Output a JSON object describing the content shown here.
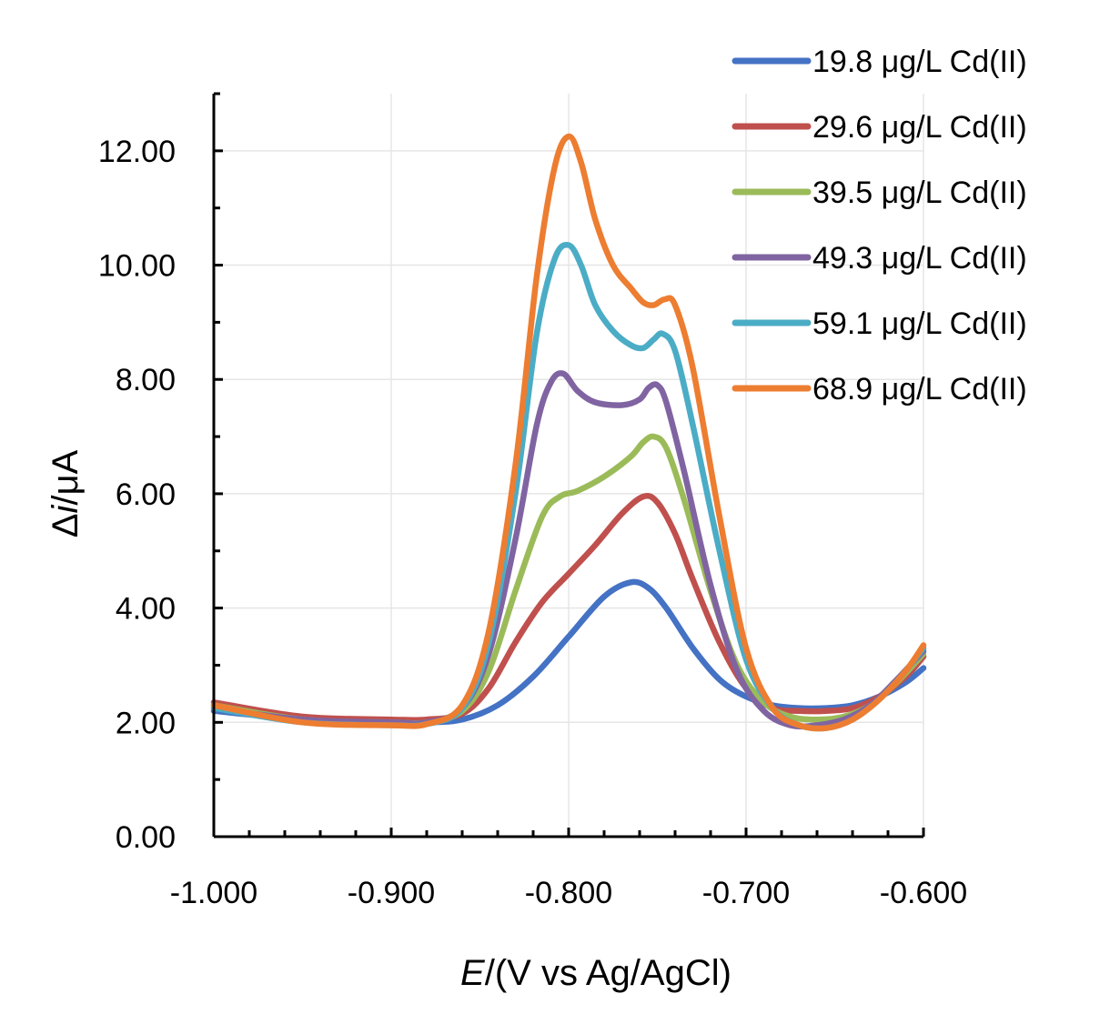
{
  "chart_data": {
    "type": "line",
    "xlabel_italic": "E",
    "xlabel_rest": "/(V vs Ag/AgCl)",
    "ylabel_prefix": "Δ",
    "ylabel_italic": "i",
    "ylabel_rest": "/μA",
    "xlim": [
      -1.0,
      -0.6
    ],
    "ylim": [
      0,
      13
    ],
    "x_ticks": [
      -1.0,
      -0.9,
      -0.8,
      -0.7,
      -0.6
    ],
    "x_tick_labels": [
      "-1.000",
      "-0.900",
      "-0.800",
      "-0.700",
      "-0.600"
    ],
    "y_ticks": [
      0,
      2,
      4,
      6,
      8,
      10,
      12
    ],
    "y_tick_labels": [
      "0.00",
      "2.00",
      "4.00",
      "6.00",
      "8.00",
      "10.00",
      "12.00"
    ],
    "grid": true,
    "legend_position": "top-right",
    "series": [
      {
        "name": "19.8 μg/L Cd(II)",
        "color": "#4472C4",
        "x": [
          -1.0,
          -0.95,
          -0.9,
          -0.88,
          -0.86,
          -0.84,
          -0.82,
          -0.8,
          -0.78,
          -0.765,
          -0.755,
          -0.745,
          -0.73,
          -0.715,
          -0.7,
          -0.685,
          -0.67,
          -0.655,
          -0.64,
          -0.625,
          -0.61,
          -0.6
        ],
        "y": [
          2.2,
          2.05,
          2.0,
          2.0,
          2.05,
          2.3,
          2.8,
          3.5,
          4.2,
          4.45,
          4.35,
          4.0,
          3.3,
          2.75,
          2.45,
          2.3,
          2.25,
          2.25,
          2.3,
          2.45,
          2.7,
          2.95
        ]
      },
      {
        "name": "29.6 μg/L Cd(II)",
        "color": "#C0504D",
        "x": [
          -1.0,
          -0.95,
          -0.9,
          -0.88,
          -0.86,
          -0.845,
          -0.83,
          -0.815,
          -0.8,
          -0.785,
          -0.77,
          -0.758,
          -0.75,
          -0.74,
          -0.73,
          -0.715,
          -0.7,
          -0.685,
          -0.67,
          -0.655,
          -0.64,
          -0.625,
          -0.61,
          -0.6
        ],
        "y": [
          2.35,
          2.1,
          2.05,
          2.05,
          2.15,
          2.6,
          3.4,
          4.1,
          4.6,
          5.1,
          5.65,
          5.95,
          5.85,
          5.3,
          4.5,
          3.4,
          2.6,
          2.25,
          2.2,
          2.2,
          2.25,
          2.45,
          2.8,
          3.15
        ]
      },
      {
        "name": "39.5 μg/L Cd(II)",
        "color": "#9BBB59",
        "x": [
          -1.0,
          -0.95,
          -0.9,
          -0.88,
          -0.86,
          -0.845,
          -0.83,
          -0.815,
          -0.805,
          -0.795,
          -0.78,
          -0.765,
          -0.758,
          -0.752,
          -0.745,
          -0.735,
          -0.72,
          -0.705,
          -0.69,
          -0.675,
          -0.66,
          -0.645,
          -0.63,
          -0.615,
          -0.6
        ],
        "y": [
          2.3,
          2.05,
          2.0,
          2.0,
          2.2,
          2.9,
          4.3,
          5.6,
          5.95,
          6.05,
          6.3,
          6.65,
          6.9,
          7.0,
          6.8,
          5.9,
          4.3,
          3.0,
          2.35,
          2.1,
          2.05,
          2.1,
          2.3,
          2.7,
          3.2
        ]
      },
      {
        "name": "49.3 μg/L Cd(II)",
        "color": "#8064A2",
        "x": [
          -1.0,
          -0.95,
          -0.9,
          -0.88,
          -0.86,
          -0.845,
          -0.83,
          -0.818,
          -0.81,
          -0.803,
          -0.795,
          -0.785,
          -0.77,
          -0.76,
          -0.755,
          -0.75,
          -0.745,
          -0.735,
          -0.72,
          -0.705,
          -0.69,
          -0.675,
          -0.66,
          -0.645,
          -0.63,
          -0.615,
          -0.6
        ],
        "y": [
          2.25,
          2.05,
          2.0,
          2.0,
          2.25,
          3.2,
          5.2,
          7.2,
          7.95,
          8.1,
          7.8,
          7.6,
          7.55,
          7.65,
          7.85,
          7.9,
          7.6,
          6.4,
          4.4,
          2.9,
          2.2,
          1.95,
          1.95,
          2.05,
          2.3,
          2.75,
          3.25
        ]
      },
      {
        "name": "59.1 μg/L Cd(II)",
        "color": "#4BACC6",
        "x": [
          -1.0,
          -0.95,
          -0.9,
          -0.88,
          -0.86,
          -0.845,
          -0.83,
          -0.818,
          -0.808,
          -0.8,
          -0.793,
          -0.785,
          -0.775,
          -0.765,
          -0.758,
          -0.752,
          -0.747,
          -0.74,
          -0.73,
          -0.715,
          -0.7,
          -0.685,
          -0.67,
          -0.655,
          -0.64,
          -0.625,
          -0.61,
          -0.6
        ],
        "y": [
          2.25,
          2.0,
          1.95,
          1.97,
          2.25,
          3.4,
          6.0,
          8.8,
          10.1,
          10.35,
          10.0,
          9.3,
          8.85,
          8.6,
          8.55,
          8.7,
          8.8,
          8.5,
          7.2,
          5.0,
          3.1,
          2.25,
          1.95,
          1.9,
          2.05,
          2.4,
          2.9,
          3.3
        ]
      },
      {
        "name": "68.9 μg/L Cd(II)",
        "color": "#ED7D31",
        "x": [
          -1.0,
          -0.95,
          -0.9,
          -0.88,
          -0.86,
          -0.845,
          -0.83,
          -0.818,
          -0.808,
          -0.8,
          -0.793,
          -0.785,
          -0.775,
          -0.765,
          -0.758,
          -0.752,
          -0.746,
          -0.74,
          -0.73,
          -0.715,
          -0.7,
          -0.685,
          -0.67,
          -0.655,
          -0.64,
          -0.625,
          -0.61,
          -0.6
        ],
        "y": [
          2.3,
          2.0,
          1.95,
          1.97,
          2.3,
          3.6,
          6.5,
          9.8,
          11.7,
          12.25,
          11.8,
          10.8,
          10.0,
          9.6,
          9.35,
          9.3,
          9.4,
          9.3,
          8.2,
          5.6,
          3.3,
          2.25,
          1.95,
          1.9,
          2.05,
          2.4,
          2.9,
          3.35
        ]
      }
    ]
  }
}
